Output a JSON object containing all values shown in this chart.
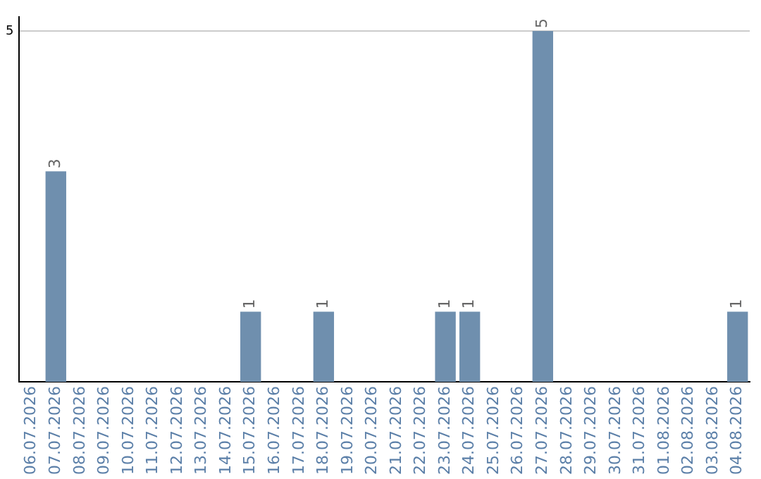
{
  "chart_data": {
    "type": "bar",
    "categories": [
      "06.07.2026",
      "07.07.2026",
      "08.07.2026",
      "09.07.2026",
      "10.07.2026",
      "11.07.2026",
      "12.07.2026",
      "13.07.2026",
      "14.07.2026",
      "15.07.2026",
      "16.07.2026",
      "17.07.2026",
      "18.07.2026",
      "19.07.2026",
      "20.07.2026",
      "21.07.2026",
      "22.07.2026",
      "23.07.2026",
      "24.07.2026",
      "25.07.2026",
      "26.07.2026",
      "27.07.2026",
      "28.07.2026",
      "29.07.2026",
      "30.07.2026",
      "31.07.2026",
      "01.08.2026",
      "02.08.2026",
      "03.08.2026",
      "04.08.2026"
    ],
    "values": [
      0,
      3,
      0,
      0,
      0,
      0,
      0,
      0,
      0,
      1,
      0,
      0,
      1,
      0,
      0,
      0,
      0,
      1,
      1,
      0,
      0,
      5,
      0,
      0,
      0,
      0,
      0,
      0,
      0,
      1
    ],
    "value_labels": [
      null,
      "3",
      null,
      null,
      null,
      null,
      null,
      null,
      null,
      "1",
      null,
      null,
      "1",
      null,
      null,
      null,
      null,
      "1",
      "1",
      null,
      null,
      "5",
      null,
      null,
      null,
      null,
      null,
      null,
      null,
      "1"
    ],
    "color": "#6f8fae",
    "ylim": [
      0,
      5.2
    ],
    "yticks": [
      5
    ],
    "grid": "y",
    "legend": false
  }
}
